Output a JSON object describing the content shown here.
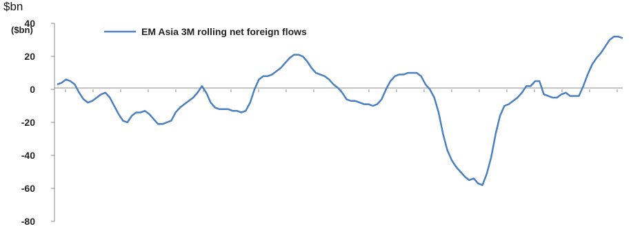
{
  "chart_data": {
    "type": "line",
    "title": "$bn",
    "ylabel": "($bn)",
    "xlabel": "",
    "ylim": [
      -80,
      40
    ],
    "yticks": [
      40,
      20,
      0,
      -20,
      -40,
      -60,
      -80
    ],
    "ytick_labels": [
      "40",
      "20",
      "0",
      "-20",
      "-40",
      "-60",
      "-80"
    ],
    "legend_position": "top-left",
    "grid": false,
    "series": [
      {
        "name": "EM Asia 3M rolling net foreign flows",
        "color": "#4a7fc1",
        "values": [
          3,
          4,
          6,
          5,
          3,
          -2,
          -6,
          -8,
          -7,
          -5,
          -3,
          -2,
          -5,
          -10,
          -15,
          -19,
          -20,
          -16,
          -14,
          -14,
          -13,
          -15,
          -18,
          -21,
          -21,
          -20,
          -19,
          -14,
          -11,
          -9,
          -7,
          -5,
          -2,
          2,
          -2,
          -8,
          -11,
          -12,
          -12,
          -12,
          -13,
          -13,
          -14,
          -13,
          -8,
          0,
          6,
          8,
          8,
          9,
          11,
          13,
          16,
          19,
          21,
          21,
          20,
          17,
          13,
          10,
          9,
          8,
          6,
          3,
          1,
          -2,
          -6,
          -7,
          -7,
          -8,
          -9,
          -9,
          -10,
          -9,
          -6,
          0,
          5,
          8,
          9,
          9,
          10,
          10,
          10,
          8,
          3,
          0,
          -5,
          -14,
          -27,
          -37,
          -43,
          -47,
          -50,
          -53,
          -55,
          -54,
          -57,
          -58,
          -51,
          -41,
          -27,
          -16,
          -10,
          -9,
          -7,
          -5,
          -2,
          2,
          2,
          5,
          5,
          -3,
          -4,
          -5,
          -5,
          -3,
          -2,
          -4,
          -4,
          -4,
          2,
          9,
          15,
          19,
          22,
          26,
          30,
          32,
          32,
          31
        ]
      }
    ]
  }
}
